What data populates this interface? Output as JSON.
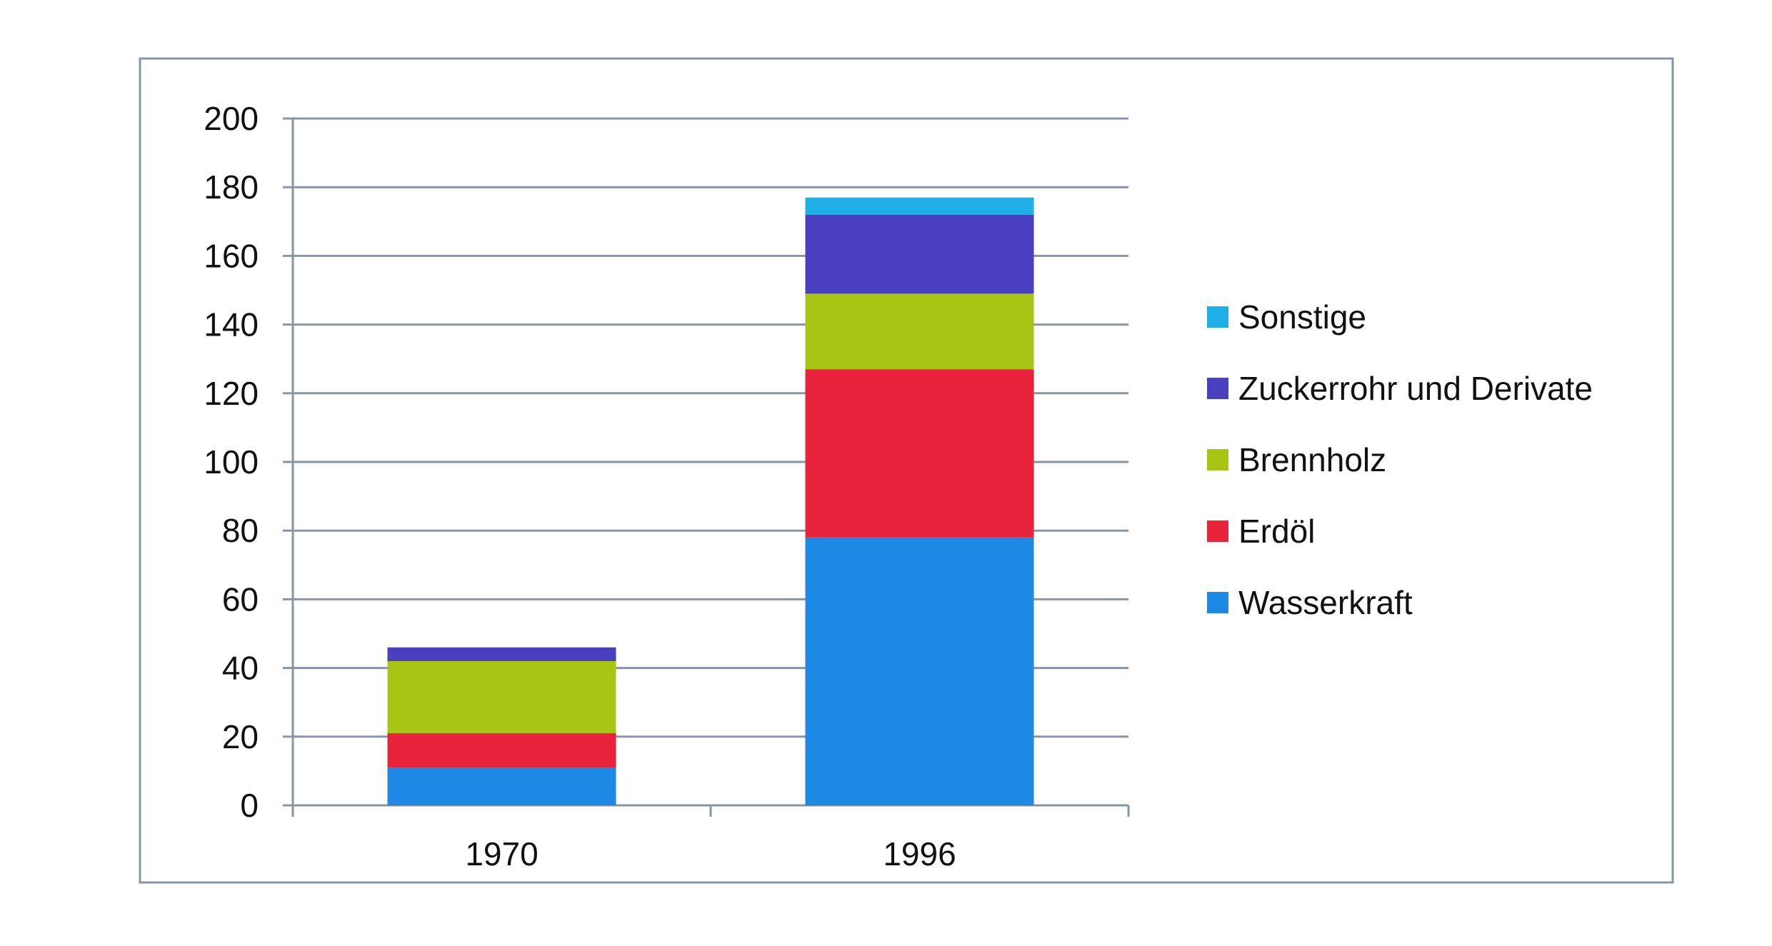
{
  "chart_data": {
    "type": "bar",
    "stacked": true,
    "categories": [
      "1970",
      "1996"
    ],
    "series": [
      {
        "name": "Wasserkraft",
        "color": "#1e88e5",
        "values": [
          11,
          78
        ]
      },
      {
        "name": "Erdöl",
        "color": "#e8223a",
        "values": [
          10,
          49
        ]
      },
      {
        "name": "Brennholz",
        "color": "#a8c515",
        "values": [
          21,
          22
        ]
      },
      {
        "name": "Zuckerrohr und Derivate",
        "color": "#4a3fc0",
        "values": [
          4,
          23
        ]
      },
      {
        "name": "Sonstige",
        "color": "#1fb0e8",
        "values": [
          0,
          5
        ]
      }
    ],
    "ylim": [
      0,
      200
    ],
    "yticks": [
      "0",
      "20",
      "40",
      "60",
      "80",
      "100",
      "120",
      "140",
      "160",
      "180",
      "200"
    ],
    "title": "",
    "xlabel": "",
    "ylabel": "",
    "grid": true,
    "legend_position": "right",
    "legend_order": [
      "Sonstige",
      "Zuckerrohr und Derivate",
      "Brennholz",
      "Erdöl",
      "Wasserkraft"
    ]
  }
}
